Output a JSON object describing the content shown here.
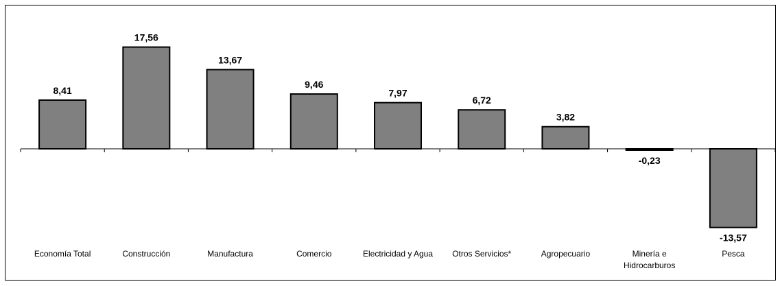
{
  "chart_data": {
    "type": "bar",
    "categories": [
      [
        "Economía Total"
      ],
      [
        "Construcción"
      ],
      [
        "Manufactura"
      ],
      [
        "Comercio"
      ],
      [
        "Electricidad y Agua"
      ],
      [
        "Otros Servicios*"
      ],
      [
        "Agropecuario"
      ],
      [
        "Minería e",
        "Hidrocarburos"
      ],
      [
        "Pesca"
      ]
    ],
    "values": [
      8.41,
      17.56,
      13.67,
      9.46,
      7.97,
      6.72,
      3.82,
      -0.23,
      -13.57
    ],
    "value_labels": [
      "8,41",
      "17,56",
      "13,67",
      "9,46",
      "7,97",
      "6,72",
      "3,82",
      "-0,23",
      "-13,57"
    ],
    "title": "",
    "xlabel": "",
    "ylabel": "",
    "grid": false,
    "colors": {
      "bar": "#808080",
      "bar_border": "#000000",
      "axis": "#000000"
    }
  }
}
